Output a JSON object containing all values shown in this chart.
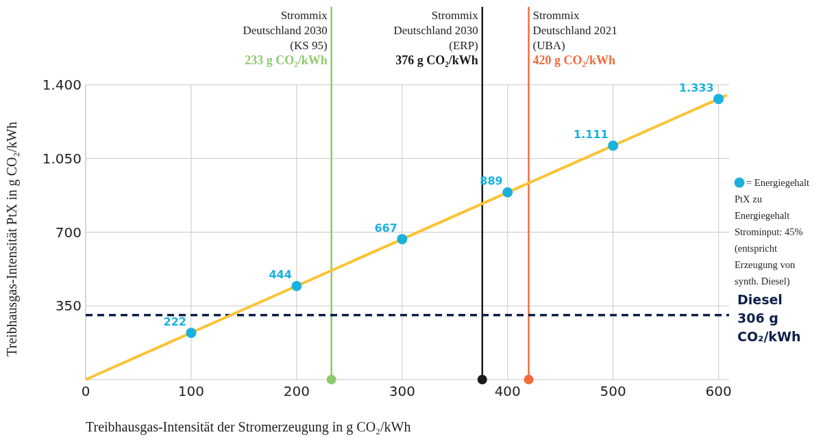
{
  "chart_data": {
    "type": "line",
    "xlabel": "Treibhausgas-Intensität der Stromerzeugung in g CO₂/kWh",
    "ylabel": "Treibhausgas-Intensität PtX in g CO₂/kWh",
    "xlim": [
      0,
      610
    ],
    "ylim": [
      0,
      1400
    ],
    "xticks": [
      0,
      100,
      200,
      300,
      400,
      500,
      600
    ],
    "yticks": [
      {
        "value": 350,
        "label": "350"
      },
      {
        "value": 700,
        "label": "700"
      },
      {
        "value": 1050,
        "label": "1.050"
      },
      {
        "value": 1400,
        "label": "1.400"
      }
    ],
    "grid": true,
    "legend": "right",
    "series": [
      {
        "color": "#fbc334",
        "x": [
          0,
          608
        ],
        "values": [
          0,
          1351
        ],
        "marker": "none"
      },
      {
        "type": "scatter",
        "name": "= Energiegehalt PtX zu Energiegehalt Strominput: 45% (entspricht Erzeugung von synth. Diesel)",
        "color": "#1ab2dc",
        "x": [
          100,
          200,
          300,
          400,
          500,
          600
        ],
        "values": [
          222,
          444,
          667,
          889,
          1111,
          1333
        ],
        "value_labels": [
          "222",
          "444",
          "667",
          "889",
          "1.111",
          "1.333"
        ],
        "marker": "circle"
      }
    ],
    "ref_lines": [
      {
        "axis": "x",
        "value": 233,
        "label": "Strommix\nDeutschland 2030\n(KS 95)\n233 g CO₂/kWh",
        "color": "#8dca6c"
      },
      {
        "axis": "x",
        "value": 376,
        "label": "Strommix\nDeutschland 2030\n(ERP)\n376 g CO₂/kWh",
        "color": "#1a1a1a"
      },
      {
        "axis": "x",
        "value": 420,
        "label": "Strommix\nDeutschland 2021\n(UBA)\n420 g CO₂/kWh",
        "color": "#f26a3b"
      },
      {
        "axis": "y",
        "value": 306,
        "label": "Diesel\n306 g\nCO₂/kWh",
        "color": "#0d1f4a",
        "line_style": "dashed"
      }
    ]
  }
}
